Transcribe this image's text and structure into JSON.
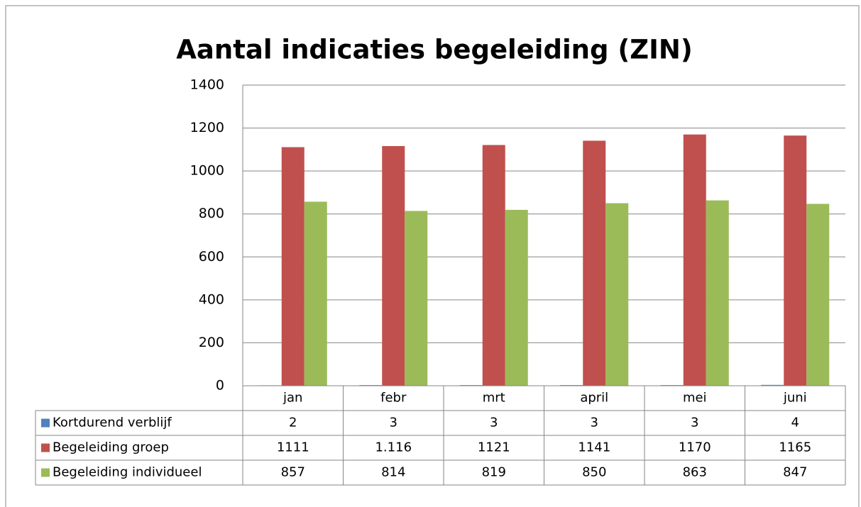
{
  "chart_data": {
    "type": "bar",
    "title": "Aantal indicaties begeleiding (ZIN)",
    "categories": [
      "jan",
      "febr",
      "mrt",
      "april",
      "mei",
      "juni"
    ],
    "series": [
      {
        "name": "Kortdurend verblijf",
        "color": "#4f81bd",
        "values": [
          2,
          3,
          3,
          3,
          3,
          4
        ]
      },
      {
        "name": "Begeleiding groep",
        "color": "#c0504d",
        "values": [
          1111,
          1116,
          1121,
          1141,
          1170,
          1165
        ],
        "value_labels": [
          "1111",
          "1.116",
          "1121",
          "1141",
          "1170",
          "1165"
        ]
      },
      {
        "name": "Begeleiding individueel",
        "color": "#9bbb59",
        "values": [
          857,
          814,
          819,
          850,
          863,
          847
        ]
      }
    ],
    "ylim": [
      0,
      1400
    ],
    "yticks": [
      0,
      200,
      400,
      600,
      800,
      1000,
      1200,
      1400
    ],
    "grid": true
  }
}
